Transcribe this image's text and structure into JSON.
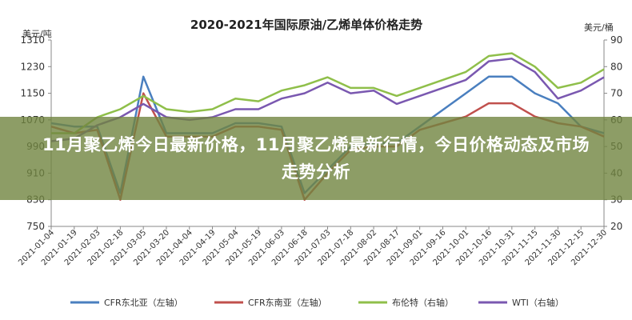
{
  "banner": {
    "text": "11月聚乙烯今日最新价格，11月聚乙烯最新行情，今日价格动态及市场走势分析"
  },
  "chart_data": {
    "type": "line",
    "title": "2020-2021年国际原油/乙烯单体价格走势",
    "ylabel_left": "美元/吨",
    "ylabel_right": "美元/桶",
    "ylim_left": [
      750,
      1310
    ],
    "ylim_right": [
      20,
      90
    ],
    "yticks_left": [
      750,
      830,
      910,
      990,
      1070,
      1150,
      1230,
      1310
    ],
    "yticks_right": [
      20,
      30,
      40,
      50,
      60,
      70,
      80,
      90
    ],
    "grid": false,
    "legend_position": "bottom",
    "x": [
      "2021-01-04",
      "2021-01-19",
      "2021-02-03",
      "2021-02-18",
      "2021-03-05",
      "2021-03-20",
      "2021-04-04",
      "2021-04-19",
      "2021-05-04",
      "2021-05-19",
      "2021-06-03",
      "2021-06-18",
      "2021-07-03",
      "2021-07-18",
      "2021-08-02",
      "2021-08-17",
      "2021-09-01",
      "2021-09-16",
      "2021-10-01",
      "2021-10-16",
      "2021-10-31",
      "2021-11-15",
      "2021-11-30",
      "2021-12-15",
      "2021-12-30"
    ],
    "series": [
      {
        "name": "CFR东北亚（左轴）",
        "axis": "left",
        "color": "#4a7fbf",
        "values": [
          1060,
          1050,
          1050,
          850,
          1200,
          1030,
          1030,
          1030,
          1060,
          1060,
          1050,
          850,
          920,
          990,
          1000,
          1000,
          1050,
          1100,
          1150,
          1200,
          1200,
          1150,
          1120,
          1050,
          1030
        ]
      },
      {
        "name": "CFR东南亚（左轴）",
        "axis": "left",
        "color": "#c0504d",
        "values": [
          1050,
          1030,
          1040,
          830,
          1150,
          1020,
          1020,
          1020,
          1050,
          1050,
          1040,
          830,
          910,
          980,
          990,
          990,
          1040,
          1060,
          1080,
          1120,
          1120,
          1080,
          1060,
          1050,
          1020
        ]
      },
      {
        "name": "布伦特（右轴）",
        "axis": "right",
        "color": "#8fbf4a",
        "values": [
          55,
          55,
          61,
          64,
          69,
          64,
          63,
          64,
          68,
          67,
          71,
          73,
          76,
          72,
          72,
          69,
          72,
          75,
          78,
          84,
          85,
          80,
          72,
          74,
          79
        ]
      },
      {
        "name": "WTI（右轴）",
        "axis": "right",
        "color": "#7a58b0",
        "values": [
          52,
          53,
          58,
          61,
          66,
          61,
          60,
          61,
          64,
          64,
          68,
          70,
          74,
          70,
          71,
          66,
          69,
          72,
          75,
          82,
          83,
          78,
          68,
          71,
          76
        ]
      }
    ]
  }
}
